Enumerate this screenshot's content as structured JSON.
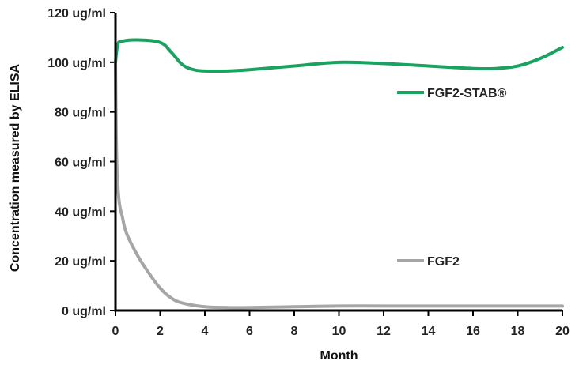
{
  "chart_data": {
    "type": "line",
    "xlabel": "Month",
    "ylabel": "Concentration measured by ELISA",
    "xlim": [
      0,
      20
    ],
    "ylim": [
      0,
      120
    ],
    "x_ticks": [
      "0",
      "2",
      "4",
      "6",
      "8",
      "10",
      "12",
      "14",
      "16",
      "18",
      "20"
    ],
    "y_ticks": [
      "0 ug/ml",
      "20 ug/ml",
      "40 ug/ml",
      "60 ug/ml",
      "80 ug/ml",
      "100 ug/ml",
      "120 ug/ml"
    ],
    "grid": false,
    "series": [
      {
        "name": "FGF2-STAB®",
        "color": "#1aa260",
        "x": [
          0,
          0.1,
          0.3,
          1,
          2,
          2.5,
          3,
          3.5,
          4,
          5,
          6,
          8,
          10,
          12,
          14,
          16,
          17,
          18,
          19,
          20
        ],
        "y": [
          100,
          107,
          108.5,
          109,
          108,
          104,
          99,
          97,
          96.5,
          96.5,
          97,
          98.5,
          100,
          99.5,
          98.5,
          97.5,
          97.5,
          98.5,
          101.5,
          106
        ]
      },
      {
        "name": "FGF2",
        "color": "#a6a6a6",
        "x": [
          0,
          0.05,
          0.15,
          0.3,
          0.5,
          1,
          1.5,
          2,
          2.5,
          3,
          4,
          5,
          6,
          8,
          10,
          12,
          14,
          16,
          18,
          20
        ],
        "y": [
          100,
          62,
          45,
          38,
          31,
          22,
          15,
          9,
          5,
          3,
          1.5,
          1.2,
          1.2,
          1.5,
          1.8,
          1.8,
          1.8,
          1.8,
          1.8,
          1.8
        ]
      }
    ]
  }
}
